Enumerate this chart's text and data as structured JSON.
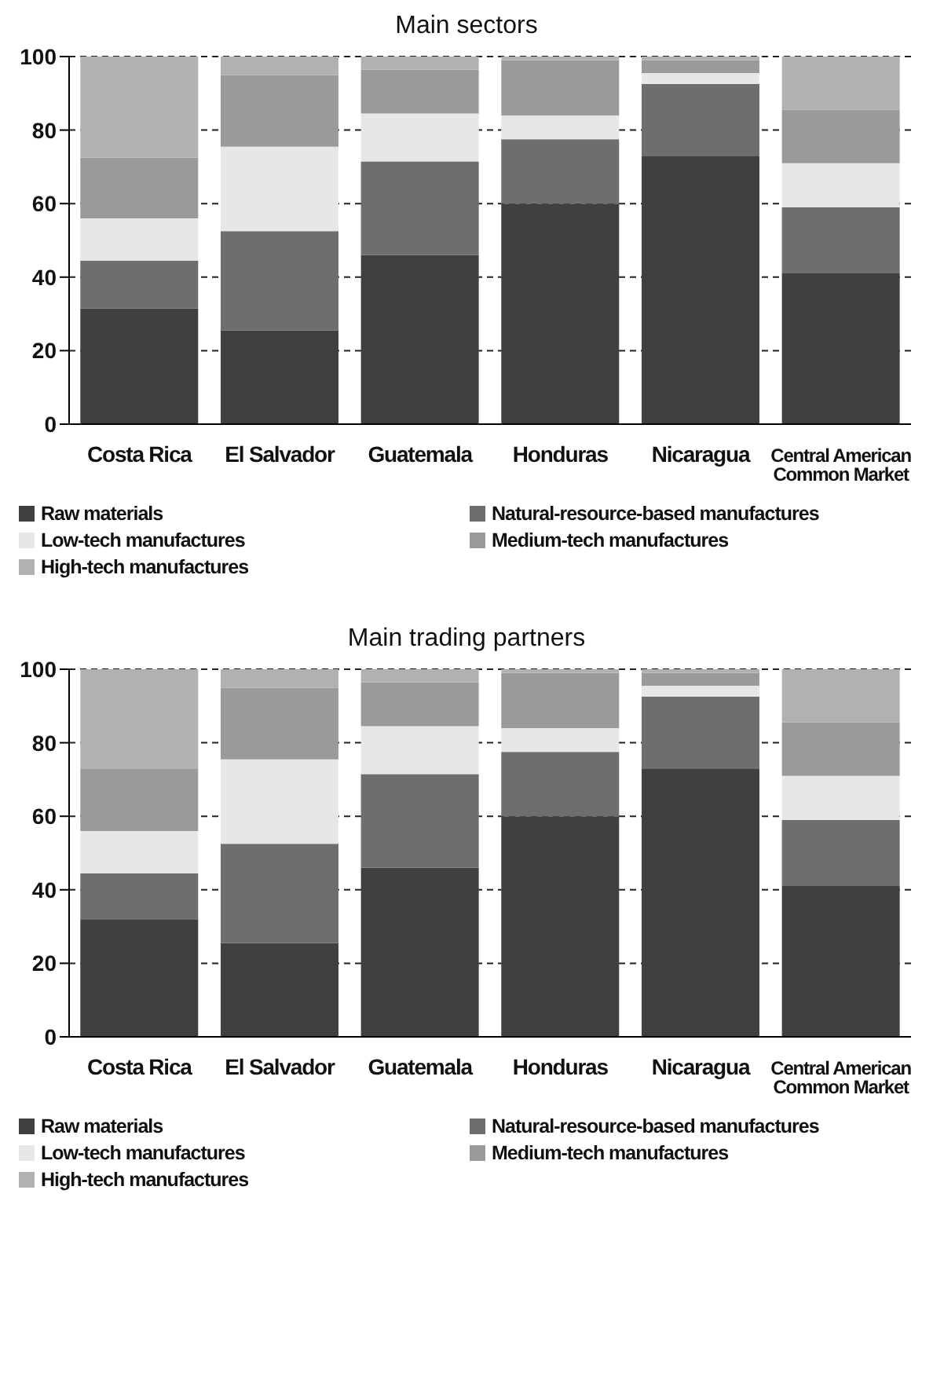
{
  "chart_data": [
    {
      "type": "bar",
      "title": "Main sectors",
      "stacked": true,
      "categories": [
        "Costa Rica",
        "El Salvador",
        "Guatemala",
        "Honduras",
        "Nicaragua",
        "Central American Common Market"
      ],
      "ylim": [
        0,
        100
      ],
      "yticks": [
        0,
        20,
        40,
        60,
        80,
        100
      ],
      "grid": "y",
      "legend": "bottom",
      "series": [
        {
          "name": "Raw materials",
          "color": "#404040",
          "values": [
            31.5,
            25.5,
            46,
            60,
            73,
            41
          ]
        },
        {
          "name": "Natural-resource-based manufactures",
          "color": "#6e6e70",
          "values": [
            13,
            27,
            25.5,
            17.5,
            19.5,
            18
          ]
        },
        {
          "name": "Low-tech manufactures",
          "color": "#e6e7e8",
          "values": [
            11.5,
            23,
            13,
            6.5,
            3,
            12
          ]
        },
        {
          "name": "Medium-tech manufactures",
          "color": "#9a9a9c",
          "values": [
            16.5,
            19.5,
            12,
            15,
            3.5,
            14.5
          ]
        },
        {
          "name": "High-tech manufactures",
          "color": "#b1b1b3",
          "values": [
            27.5,
            5,
            3.5,
            1,
            1,
            14.5
          ]
        }
      ]
    },
    {
      "type": "bar",
      "title": "Main trading partners",
      "stacked": true,
      "categories": [
        "Costa Rica",
        "El Salvador",
        "Guatemala",
        "Honduras",
        "Nicaragua",
        "Central American Common Market"
      ],
      "ylim": [
        0,
        100
      ],
      "yticks": [
        0,
        20,
        40,
        60,
        80,
        100
      ],
      "grid": "y",
      "legend": "bottom",
      "series": [
        {
          "name": "Raw materials",
          "color": "#404040",
          "values": [
            32,
            25.5,
            46,
            60,
            73,
            41
          ]
        },
        {
          "name": "Natural-resource-based manufactures",
          "color": "#6e6e70",
          "values": [
            12.5,
            27,
            25.5,
            17.5,
            19.5,
            18
          ]
        },
        {
          "name": "Low-tech manufactures",
          "color": "#e6e7e8",
          "values": [
            11.5,
            23,
            13,
            6.5,
            3,
            12
          ]
        },
        {
          "name": "Medium-tech manufactures",
          "color": "#9a9a9c",
          "values": [
            17,
            19.5,
            12,
            15,
            3.5,
            14.5
          ]
        },
        {
          "name": "High-tech manufactures",
          "color": "#b1b1b3",
          "values": [
            27,
            5,
            3.5,
            1,
            1,
            14.5
          ]
        }
      ]
    }
  ]
}
